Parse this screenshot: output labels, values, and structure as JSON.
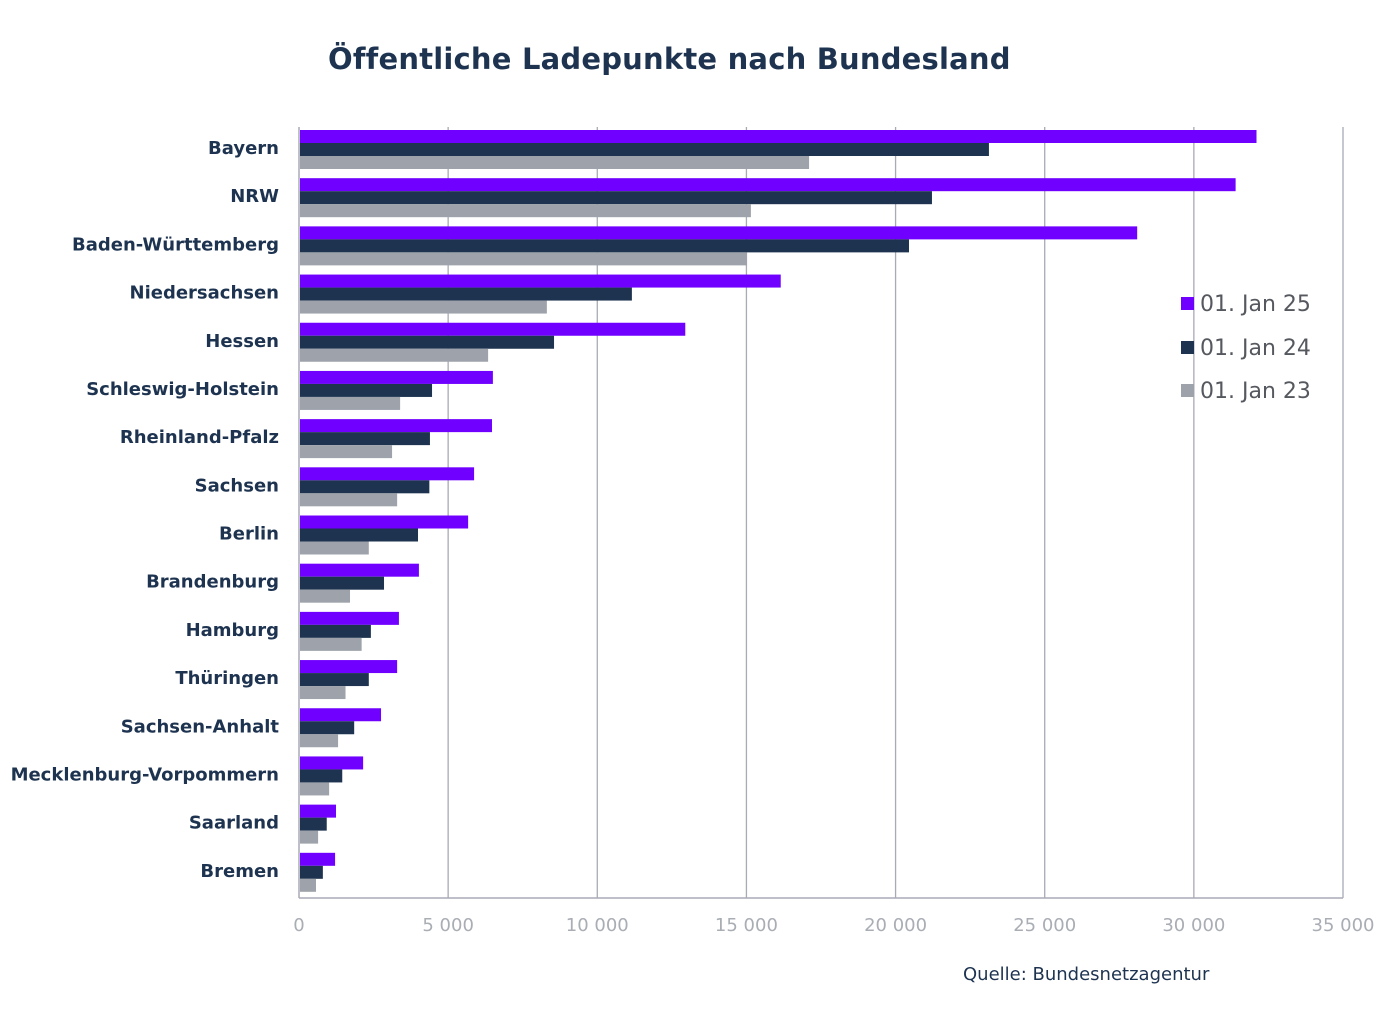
{
  "chart_data": {
    "type": "bar",
    "orientation": "horizontal",
    "title": "Öffentliche Ladepunkte nach Bundesland",
    "xlabel": "",
    "ylabel": "",
    "xlim": [
      0,
      35000
    ],
    "xticks": [
      0,
      5000,
      10000,
      15000,
      20000,
      25000,
      30000,
      35000
    ],
    "xtick_labels": [
      "0",
      "5 000",
      "10 000",
      "15 000",
      "20 000",
      "25 000",
      "30 000",
      "35 000"
    ],
    "grid": "vertical",
    "legend_position": "right",
    "categories": [
      "Bayern",
      "NRW",
      "Baden-Württemberg",
      "Niedersachsen",
      "Hessen",
      "Schleswig-Holstein",
      "Rheinland-Pfalz",
      "Sachsen",
      "Berlin",
      "Brandenburg",
      "Hamburg",
      "Thüringen",
      "Sachsen-Anhalt",
      "Mecklenburg-Vorpommern",
      "Saarland",
      "Bremen"
    ],
    "series": [
      {
        "name": "01. Jan 25",
        "color": "#7000ff",
        "values": [
          32100,
          31400,
          28100,
          16150,
          12950,
          6500,
          6470,
          5870,
          5670,
          4020,
          3350,
          3290,
          2750,
          2150,
          1240,
          1210
        ]
      },
      {
        "name": "01. Jan 24",
        "color": "#1d3350",
        "values": [
          23130,
          21220,
          20450,
          11160,
          8550,
          4460,
          4390,
          4370,
          3990,
          2850,
          2410,
          2340,
          1850,
          1450,
          930,
          800
        ]
      },
      {
        "name": "01. Jan 23",
        "color": "#9ea3ab",
        "values": [
          17100,
          15150,
          15020,
          8310,
          6340,
          3390,
          3120,
          3290,
          2340,
          1710,
          2100,
          1560,
          1310,
          1010,
          640,
          570
        ]
      }
    ],
    "source": "Quelle: Bundesnetzagentur"
  },
  "colors": {
    "title": "#1d3350",
    "grid": "#a8aab5",
    "axis": "#a8aab5"
  }
}
